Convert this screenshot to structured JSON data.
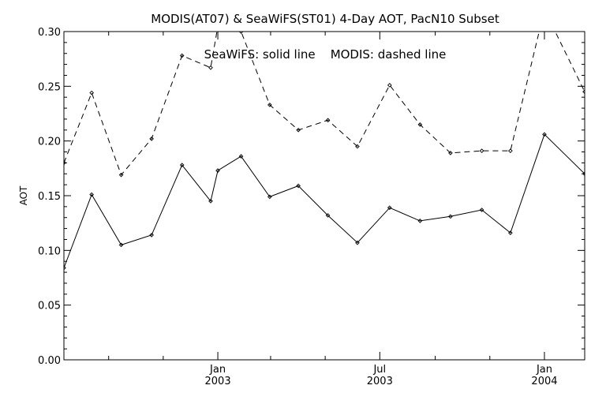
{
  "chart_data": {
    "type": "line",
    "title": "MODIS(AT07) & SeaWiFS(ST01) 4-Day AOT, PacN10 Subset",
    "annotation": "SeaWiFS: solid line    MODIS: dashed line",
    "xlabel": "",
    "ylabel": "AOT",
    "ylim": [
      0.0,
      0.3
    ],
    "yticks": [
      "0.00",
      "0.05",
      "0.10",
      "0.15",
      "0.20",
      "0.25",
      "0.30"
    ],
    "xlim": [
      "2002-07-13",
      "2004-02-15"
    ],
    "xticks_major": [
      {
        "date": "2003-01-01",
        "label1": "Jan",
        "label2": "2003"
      },
      {
        "date": "2003-07-01",
        "label1": "Jul",
        "label2": "2003"
      },
      {
        "date": "2004-01-01",
        "label1": "Jan",
        "label2": "2004"
      }
    ],
    "series": [
      {
        "name": "SeaWiFS",
        "style": "solid",
        "x": [
          "2002-07-13",
          "2002-08-13",
          "2002-09-15",
          "2002-10-19",
          "2002-11-22",
          "2002-12-24",
          "2003-01-01",
          "2003-01-27",
          "2003-02-28",
          "2003-04-01",
          "2003-05-04",
          "2003-06-06",
          "2003-07-12",
          "2003-08-15",
          "2003-09-18",
          "2003-10-23",
          "2003-11-24",
          "2004-01-01",
          "2004-02-15"
        ],
        "values": [
          0.084,
          0.151,
          0.105,
          0.114,
          0.178,
          0.145,
          0.173,
          0.186,
          0.149,
          0.159,
          0.132,
          0.107,
          0.139,
          0.127,
          0.131,
          0.137,
          0.116,
          0.206,
          0.17
        ]
      },
      {
        "name": "MODIS",
        "style": "dashed",
        "x": [
          "2002-07-13",
          "2002-08-13",
          "2002-09-15",
          "2002-10-19",
          "2002-11-22",
          "2002-12-24",
          "2003-01-01",
          "2003-01-27",
          "2003-02-28",
          "2003-04-01",
          "2003-05-04",
          "2003-06-06",
          "2003-07-12",
          "2003-08-15",
          "2003-09-18",
          "2003-10-23",
          "2003-11-24",
          "2004-01-01",
          "2004-02-15"
        ],
        "values": [
          0.18,
          0.244,
          0.169,
          0.202,
          0.278,
          0.267,
          0.305,
          0.3,
          0.233,
          0.21,
          0.219,
          0.195,
          0.251,
          0.215,
          0.189,
          0.191,
          0.191,
          0.32,
          0.245
        ]
      }
    ]
  }
}
